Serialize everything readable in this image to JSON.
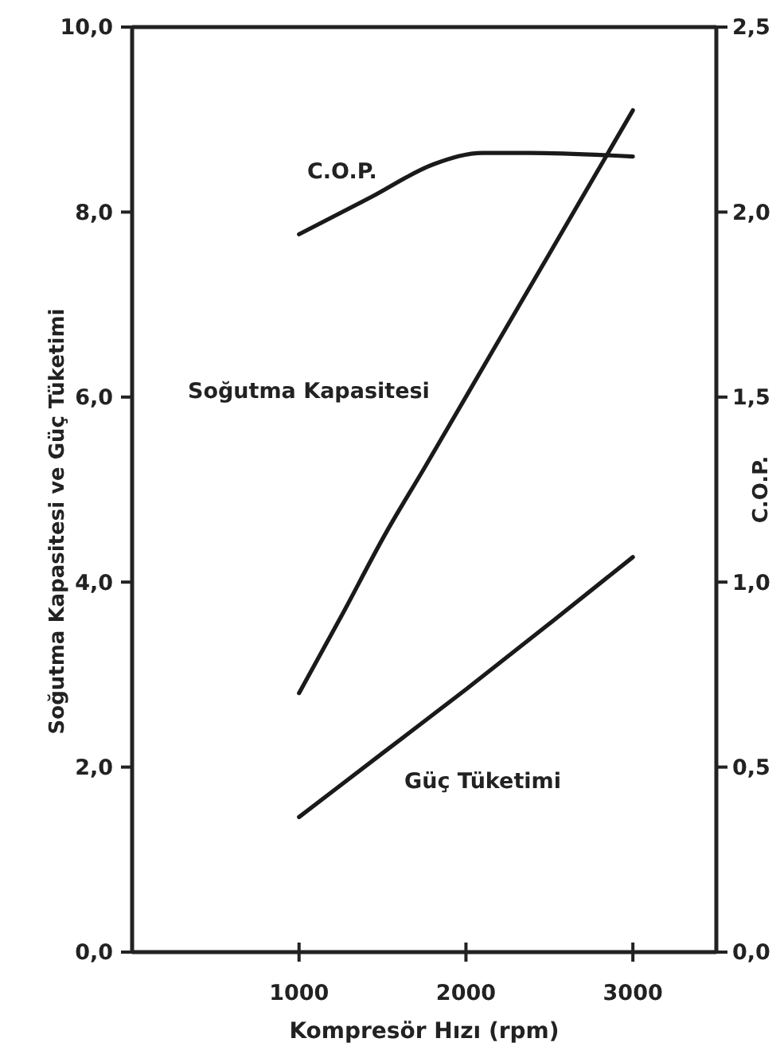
{
  "chart_data": {
    "type": "line",
    "xlabel": "Kompresör Hızı (rpm)",
    "ylabel": "Soğutma Kapasitesi ve Güç Tüketimi",
    "y2label": "C.O.P.",
    "xlim": [
      0,
      3500
    ],
    "xticks": [
      1000,
      2000,
      3000
    ],
    "ylim": [
      0,
      10
    ],
    "yticks": [
      {
        "value": 0,
        "label": "0,0"
      },
      {
        "value": 2,
        "label": "2,0"
      },
      {
        "value": 4,
        "label": "4,0"
      },
      {
        "value": 6,
        "label": "6,0"
      },
      {
        "value": 8,
        "label": "8,0"
      },
      {
        "value": 10,
        "label": "10,0"
      }
    ],
    "y2lim": [
      0,
      2.5
    ],
    "y2ticks": [
      {
        "value": 0,
        "label": "0,0"
      },
      {
        "value": 0.5,
        "label": "0,5"
      },
      {
        "value": 1,
        "label": "1,0"
      },
      {
        "value": 1.5,
        "label": "1,5"
      },
      {
        "value": 2,
        "label": "2,0"
      },
      {
        "value": 2.5,
        "label": "2,5"
      }
    ],
    "grid": false,
    "legend": false,
    "line_style": "solid",
    "marker": "none",
    "series": [
      {
        "name": "Soğutma Kapasitesi",
        "color": "#1a1a1a",
        "x": [
          1000,
          1250,
          1520,
          1750,
          2160,
          2500,
          3000
        ],
        "values": [
          2.8,
          3.62,
          4.53,
          5.23,
          6.5,
          7.55,
          9.1
        ]
      },
      {
        "name": "Güç Tüketimi",
        "color": "#1a1a1a",
        "x": [
          1000,
          1500,
          2000,
          2500,
          3000
        ],
        "values": [
          1.46,
          2.15,
          2.84,
          3.55,
          4.27
        ]
      },
      {
        "name": "C.O.P.",
        "color": "#1a1a1a",
        "axis": "y2",
        "x": [
          1000,
          1430,
          1810,
          2100,
          2380,
          3000
        ],
        "values": [
          1.94,
          2.04,
          2.13,
          2.16,
          2.16,
          2.15
        ]
      }
    ]
  }
}
